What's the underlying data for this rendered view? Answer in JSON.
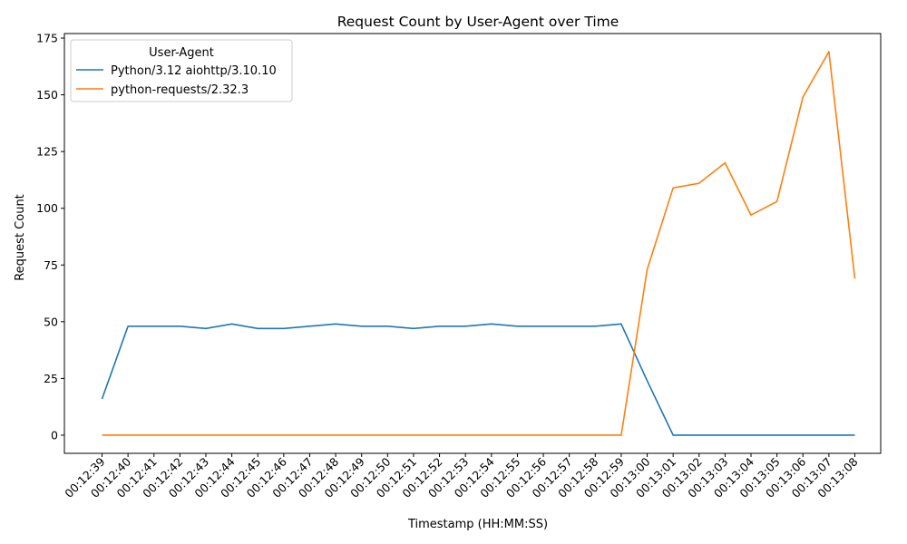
{
  "chart_data": {
    "type": "line",
    "title": "Request Count by User-Agent over Time",
    "xlabel": "Timestamp (HH:MM:SS)",
    "ylabel": "Request Count",
    "ylim": [
      -8,
      177
    ],
    "yticks": [
      0,
      25,
      50,
      75,
      100,
      125,
      150,
      175
    ],
    "grid": false,
    "legend": {
      "title": "User-Agent",
      "placement": "top-left"
    },
    "x": [
      "00:12:39",
      "00:12:40",
      "00:12:41",
      "00:12:42",
      "00:12:43",
      "00:12:44",
      "00:12:45",
      "00:12:46",
      "00:12:47",
      "00:12:48",
      "00:12:49",
      "00:12:50",
      "00:12:51",
      "00:12:52",
      "00:12:53",
      "00:12:54",
      "00:12:55",
      "00:12:56",
      "00:12:57",
      "00:12:58",
      "00:12:59",
      "00:13:00",
      "00:13:01",
      "00:13:02",
      "00:13:03",
      "00:13:04",
      "00:13:05",
      "00:13:06",
      "00:13:07",
      "00:13:08"
    ],
    "series": [
      {
        "name": "Python/3.12 aiohttp/3.10.10",
        "color": "#1f77b4",
        "values": [
          16,
          48,
          48,
          48,
          47,
          49,
          47,
          47,
          48,
          49,
          48,
          48,
          47,
          48,
          48,
          49,
          48,
          48,
          48,
          48,
          49,
          24,
          0,
          0,
          0,
          0,
          0,
          0,
          0,
          0
        ]
      },
      {
        "name": "python-requests/2.32.3",
        "color": "#ff7f0e",
        "values": [
          0,
          0,
          0,
          0,
          0,
          0,
          0,
          0,
          0,
          0,
          0,
          0,
          0,
          0,
          0,
          0,
          0,
          0,
          0,
          0,
          0,
          73,
          109,
          111,
          120,
          97,
          103,
          149,
          169,
          69
        ]
      }
    ]
  }
}
